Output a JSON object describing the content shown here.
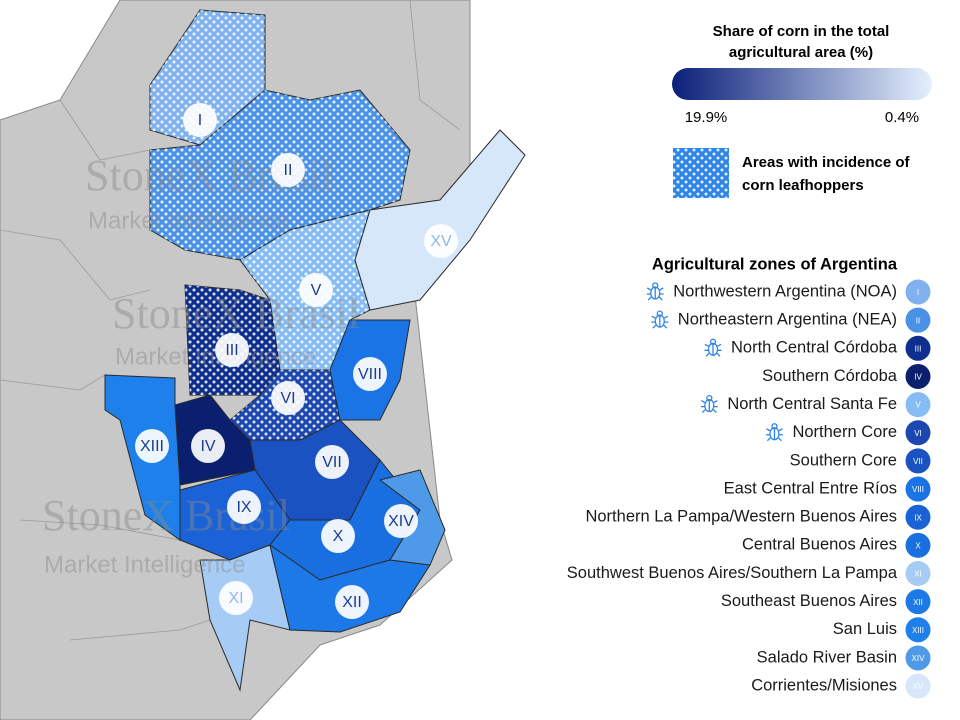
{
  "legend": {
    "title": [
      "Share of corn in the total",
      "agricultural area (%)"
    ],
    "gradient": {
      "high_color": "#0a1f7a",
      "low_color": "#e4f0fd",
      "high_label": "19.9%",
      "low_label": "0.4%"
    },
    "pattern_label": [
      "Areas with incidence of",
      "corn leafhoppers"
    ]
  },
  "watermark": {
    "brand": "StoneX Brasil",
    "tagline": "Market Intelligence"
  },
  "zones_title": "Agricultural zones of Argentina",
  "zones": [
    {
      "numeral": "I",
      "name": "Northwestern Argentina (NOA)",
      "leafhopper": true,
      "color": "#7fb2ee"
    },
    {
      "numeral": "II",
      "name": "Northeastern Argentina (NEA)",
      "leafhopper": true,
      "color": "#4b92e6"
    },
    {
      "numeral": "III",
      "name": "North Central Córdoba",
      "leafhopper": true,
      "color": "#0e2f8e"
    },
    {
      "numeral": "IV",
      "name": "Southern Córdoba",
      "leafhopper": false,
      "color": "#0a1f6e"
    },
    {
      "numeral": "V",
      "name": "North Central Santa Fe",
      "leafhopper": true,
      "color": "#86bcf4"
    },
    {
      "numeral": "VI",
      "name": "Northern Core",
      "leafhopper": true,
      "color": "#1c47b0"
    },
    {
      "numeral": "VII",
      "name": "Southern Core",
      "leafhopper": false,
      "color": "#1a52c2"
    },
    {
      "numeral": "VIII",
      "name": "East Central Entre Ríos",
      "leafhopper": false,
      "color": "#1a74e6"
    },
    {
      "numeral": "IX",
      "name": "Northern La Pampa/Western Buenos Aires",
      "leafhopper": false,
      "color": "#1a62d6"
    },
    {
      "numeral": "X",
      "name": "Central Buenos Aires",
      "leafhopper": false,
      "color": "#1a6fe0"
    },
    {
      "numeral": "XI",
      "name": "Southwest Buenos Aires/Southern La Pampa",
      "leafhopper": false,
      "color": "#a6cbf4"
    },
    {
      "numeral": "XII",
      "name": "Southeast Buenos Aires",
      "leafhopper": false,
      "color": "#1e79e8"
    },
    {
      "numeral": "XIII",
      "name": "San Luis",
      "leafhopper": false,
      "color": "#1e80ea"
    },
    {
      "numeral": "XIV",
      "name": "Salado River Basin",
      "leafhopper": false,
      "color": "#4e9ae8"
    },
    {
      "numeral": "XV",
      "name": "Corrientes/Misiones",
      "leafhopper": false,
      "color": "#d6e7fa"
    }
  ]
}
